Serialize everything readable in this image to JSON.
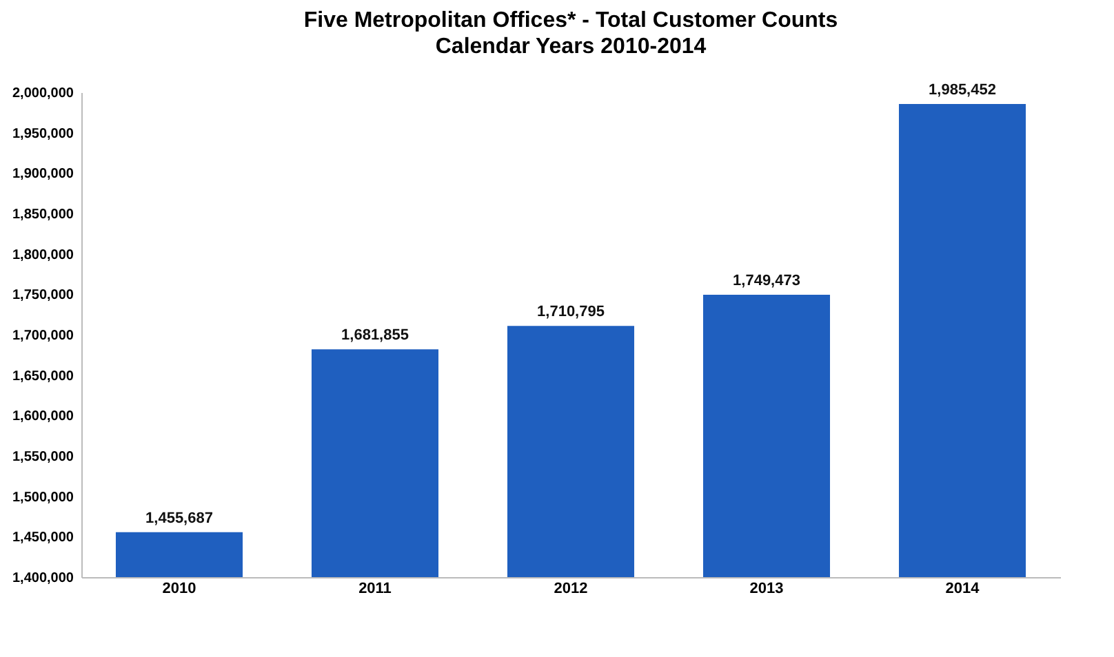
{
  "chart_data": {
    "type": "bar",
    "title": "Five Metropolitan Offices* - Total Customer Counts",
    "subtitle": "Calendar Years 2010-2014",
    "categories": [
      "2010",
      "2011",
      "2012",
      "2013",
      "2014"
    ],
    "values": [
      1455687,
      1681855,
      1710795,
      1749473,
      1985452
    ],
    "value_labels": [
      "1,455,687",
      "1,681,855",
      "1,710,795",
      "1,749,473",
      "1,985,452"
    ],
    "color": "#1f5fbf",
    "ylim": [
      1400000,
      2000000
    ],
    "yticks": [
      {
        "value": 1400000,
        "label": "1,400,000"
      },
      {
        "value": 1450000,
        "label": "1,450,000"
      },
      {
        "value": 1500000,
        "label": "1,500,000"
      },
      {
        "value": 1550000,
        "label": "1,550,000"
      },
      {
        "value": 1600000,
        "label": "1,600,000"
      },
      {
        "value": 1650000,
        "label": "1,650,000"
      },
      {
        "value": 1700000,
        "label": "1,700,000"
      },
      {
        "value": 1750000,
        "label": "1,750,000"
      },
      {
        "value": 1800000,
        "label": "1,800,000"
      },
      {
        "value": 1850000,
        "label": "1,850,000"
      },
      {
        "value": 1900000,
        "label": "1,900,000"
      },
      {
        "value": 1950000,
        "label": "1,950,000"
      },
      {
        "value": 2000000,
        "label": "2,000,000"
      }
    ],
    "grid": false
  }
}
